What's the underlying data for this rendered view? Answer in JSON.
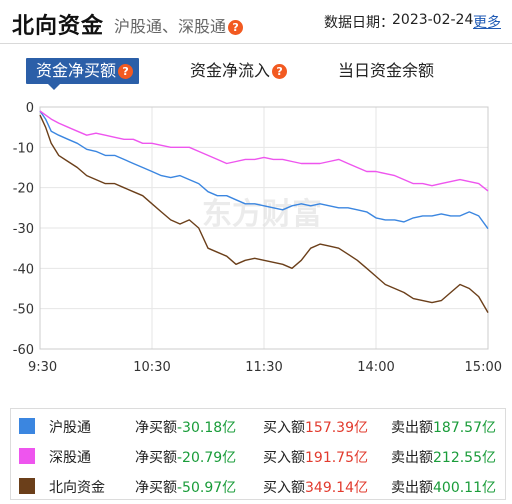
{
  "header": {
    "title": "北向资金",
    "subtitle": "沪股通、深股通",
    "date_label": "数据日期：",
    "date_value": "2023-02-24",
    "more_label": "更多"
  },
  "tabs": [
    {
      "label": "资金净买额",
      "active": true,
      "help": true
    },
    {
      "label": "资金净流入",
      "active": false,
      "help": true
    },
    {
      "label": "当日资金余额",
      "active": false,
      "help": false
    }
  ],
  "help_glyph": "?",
  "watermark": "东方财富",
  "colors": {
    "hgt": "#3b86e0",
    "sgt": "#ee55ee",
    "north": "#6b3f1a",
    "tab_active": "#2b5fa8",
    "help": "#f25a21",
    "green": "#1a9c3a",
    "red": "#e23b2e"
  },
  "chart_data": {
    "type": "line",
    "x_ticks": [
      "9:30",
      "10:30",
      "11:30",
      "14:00",
      "15:00"
    ],
    "y_ticks": [
      0,
      -10,
      -20,
      -30,
      -40,
      -50,
      -60
    ],
    "ylim": [
      -60,
      0
    ],
    "grid": true,
    "session_points": 241,
    "series": [
      {
        "name": "沪股通",
        "color": "#3b86e0",
        "x": [
          0,
          3,
          6,
          10,
          15,
          20,
          25,
          30,
          35,
          40,
          45,
          50,
          55,
          60,
          65,
          70,
          75,
          80,
          85,
          90,
          95,
          100,
          105,
          110,
          115,
          120,
          125,
          130,
          135,
          140,
          145,
          150,
          155,
          160,
          165,
          170,
          175,
          180,
          185,
          190,
          195,
          200,
          205,
          210,
          215,
          220,
          225,
          230,
          235,
          240
        ],
        "y": [
          -1,
          -3,
          -6,
          -7,
          -8,
          -9,
          -10.5,
          -11,
          -12,
          -12,
          -13,
          -14,
          -15,
          -16,
          -17,
          -17.5,
          -17,
          -18,
          -19,
          -21,
          -22,
          -22,
          -23,
          -24,
          -24,
          -24.5,
          -25,
          -25.5,
          -24.5,
          -24,
          -24.5,
          -24,
          -24.5,
          -25,
          -25,
          -25.5,
          -26,
          -27.5,
          -28,
          -28,
          -28.5,
          -27.5,
          -27,
          -27,
          -26.5,
          -27,
          -27,
          -26,
          -27,
          -30.18
        ]
      },
      {
        "name": "深股通",
        "color": "#ee55ee",
        "x": [
          0,
          3,
          6,
          10,
          15,
          20,
          25,
          30,
          35,
          40,
          45,
          50,
          55,
          60,
          65,
          70,
          75,
          80,
          85,
          90,
          95,
          100,
          105,
          110,
          115,
          120,
          125,
          130,
          135,
          140,
          145,
          150,
          155,
          160,
          165,
          170,
          175,
          180,
          185,
          190,
          195,
          200,
          205,
          210,
          215,
          220,
          225,
          230,
          235,
          240
        ],
        "y": [
          -1,
          -2,
          -3,
          -4,
          -5,
          -6,
          -7,
          -6.5,
          -7,
          -7.5,
          -8,
          -8,
          -9,
          -9,
          -9.5,
          -10,
          -10,
          -10,
          -11,
          -12,
          -13,
          -14,
          -13.5,
          -13,
          -13,
          -12.5,
          -13,
          -13,
          -13.5,
          -14,
          -14,
          -14,
          -13.5,
          -13,
          -14,
          -15,
          -16,
          -16,
          -16.5,
          -17,
          -18,
          -19,
          -19,
          -19.5,
          -19,
          -18.5,
          -18,
          -18.5,
          -19,
          -20.79
        ]
      },
      {
        "name": "北向资金",
        "color": "#6b3f1a",
        "x": [
          0,
          3,
          6,
          10,
          15,
          20,
          25,
          30,
          35,
          40,
          45,
          50,
          55,
          60,
          65,
          70,
          75,
          80,
          85,
          90,
          95,
          100,
          105,
          110,
          115,
          120,
          125,
          130,
          135,
          140,
          145,
          150,
          155,
          160,
          165,
          170,
          175,
          180,
          185,
          190,
          195,
          200,
          205,
          210,
          215,
          220,
          225,
          230,
          235,
          240
        ],
        "y": [
          -2,
          -5,
          -9,
          -12,
          -13.5,
          -15,
          -17,
          -18,
          -19,
          -19,
          -20,
          -21,
          -22,
          -24,
          -26,
          -28,
          -29,
          -28,
          -30,
          -35,
          -36,
          -37,
          -39,
          -38,
          -37.5,
          -38,
          -38.5,
          -39,
          -40,
          -38,
          -35,
          -34,
          -34.5,
          -35,
          -36.5,
          -38,
          -40,
          -42,
          -44,
          -45,
          -46,
          -47.5,
          -48,
          -48.5,
          -48,
          -46,
          -44,
          -45,
          -47,
          -50.97
        ]
      }
    ]
  },
  "legend": {
    "net_label": "净买额",
    "buy_label": "买入额",
    "sell_label": "卖出额",
    "rows": [
      {
        "name": "沪股通",
        "color": "#3b86e0",
        "net": "-30.18亿",
        "buy": "157.39亿",
        "sell": "187.57亿"
      },
      {
        "name": "深股通",
        "color": "#ee55ee",
        "net": "-20.79亿",
        "buy": "191.75亿",
        "sell": "212.55亿"
      },
      {
        "name": "北向资金",
        "color": "#6b3f1a",
        "net": "-50.97亿",
        "buy": "349.14亿",
        "sell": "400.11亿"
      }
    ]
  }
}
